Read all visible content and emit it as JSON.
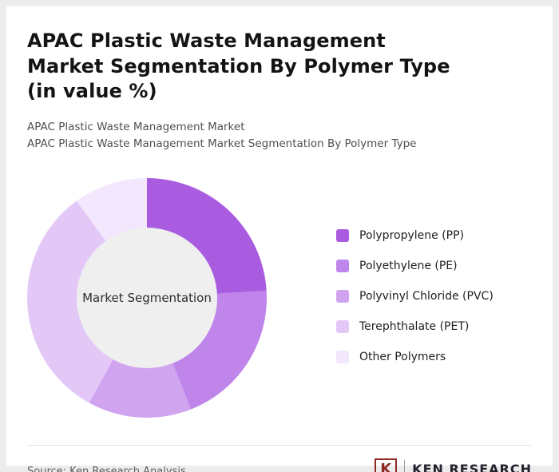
{
  "header": {
    "title": "APAC Plastic Waste Management Market Segmentation By Polymer Type (in value %)",
    "subtitle1": "APAC Plastic Waste Management Market",
    "subtitle2": "APAC Plastic Waste Management Market Segmentation By Polymer Type"
  },
  "chart_data": {
    "type": "pie",
    "donut": true,
    "title": "APAC Plastic Waste Management Market Segmentation By Polymer Type (in value %)",
    "center_label": "Market Segmentation",
    "categories": [
      "Polypropylene (PP)",
      "Polyethylene (PE)",
      "Polyvinyl Chloride (PVC)",
      "Terephthalate (PET)",
      "Other Polymers"
    ],
    "values": [
      24,
      20,
      14,
      32,
      10
    ],
    "colors": [
      "#a95ce0",
      "#bf85ea",
      "#d1a4f0",
      "#e3c8f7",
      "#f2e7fc"
    ],
    "units": "value %",
    "legend_position": "right",
    "start_angle_deg": 0,
    "direction": "clockwise"
  },
  "footer": {
    "source": "Source: Ken Research Analysis",
    "logo_k": "K",
    "logo_text": "KEN RESEARCH"
  }
}
